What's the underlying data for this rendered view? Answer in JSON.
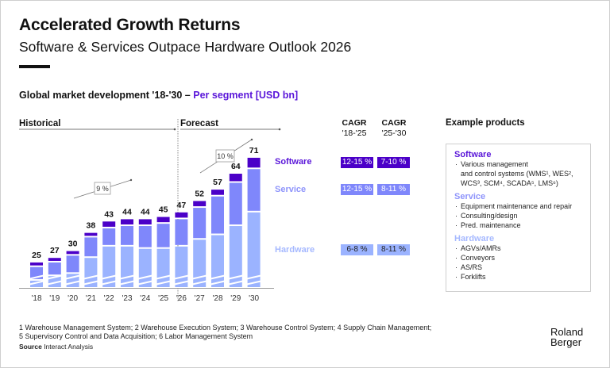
{
  "header": {
    "title": "Accelerated Growth Returns",
    "subtitle": "Software & Services Outpace Hardware Outlook 2026"
  },
  "chart_heading": {
    "main": "Global market development '18-'30 – ",
    "highlight": "Per segment [USD bn]"
  },
  "periods": {
    "historical": "Historical",
    "forecast": "Forecast"
  },
  "colors": {
    "software": "#4b00c8",
    "service": "#7f87fb",
    "hardware": "#9bb3ff",
    "software_text": "#5a16d9",
    "service_text": "#8e94fb",
    "hardware_text": "#a6b9ff"
  },
  "chart_data": {
    "type": "bar",
    "stacked": true,
    "title": "Global market development '18-'30 – Per segment [USD bn]",
    "xlabel": "",
    "ylabel": "USD bn",
    "axis_break": true,
    "categories": [
      "'18",
      "'19",
      "'20",
      "'21",
      "'22",
      "'23",
      "'24",
      "'25",
      "'26",
      "'27",
      "'28",
      "'29",
      "'30"
    ],
    "totals": [
      25,
      27,
      30,
      38,
      43,
      44,
      44,
      45,
      47,
      52,
      57,
      64,
      71
    ],
    "series": [
      {
        "name": "Hardware",
        "values": [
          17,
          19,
          20,
          27,
          32,
          32,
          31,
          31,
          32,
          35,
          37,
          41,
          47
        ]
      },
      {
        "name": "Service",
        "values": [
          6,
          6,
          8,
          9,
          8,
          9,
          10,
          11,
          12,
          14,
          17,
          19,
          19
        ]
      },
      {
        "name": "Software",
        "values": [
          2,
          2,
          2,
          2,
          3,
          3,
          3,
          3,
          3,
          3,
          3,
          4,
          5
        ]
      }
    ],
    "annotations": [
      {
        "text": "9 %",
        "period": "historical",
        "meaning": "CAGR '18-'25"
      },
      {
        "text": "10 %",
        "period": "forecast",
        "meaning": "CAGR '25-'30"
      }
    ],
    "legend": "right"
  },
  "cagr": {
    "col1_title": "CAGR",
    "col1_period": "'18-'25",
    "col2_title": "CAGR",
    "col2_period": "'25-'30",
    "rows": [
      {
        "segment": "Software",
        "v1": "12-15 %",
        "v2": "7-10 %"
      },
      {
        "segment": "Service",
        "v1": "12-15 %",
        "v2": "8-11 %"
      },
      {
        "segment": "Hardware",
        "v1": "6-8 %",
        "v2": "8-11 %"
      }
    ]
  },
  "examples": {
    "heading": "Example products",
    "groups": [
      {
        "name": "Software",
        "items": [
          "Various management",
          "and control systems (WMS¹, WES²,",
          "WCS³, SCM⁴, SCADA⁵, LMS⁶)"
        ]
      },
      {
        "name": "Service",
        "items": [
          "Equipment maintenance and repair",
          "Consulting/design",
          "Pred. maintenance"
        ]
      },
      {
        "name": "Hardware",
        "items": [
          "AGVs/AMRs",
          "Conveyors",
          "AS/RS",
          "Forklifts"
        ]
      }
    ]
  },
  "footnote": {
    "line1": "1 Warehouse Management System; 2 Warehouse Execution System; 3 Warehouse Control System; 4 Supply Chain Management;",
    "line2": "5 Supervisory Control and Data Acquisition; 6 Labor Management System",
    "source_label": "Source",
    "source_text": " Interact Analysis"
  },
  "logo": {
    "line1": "Roland",
    "line2": "Berger"
  }
}
